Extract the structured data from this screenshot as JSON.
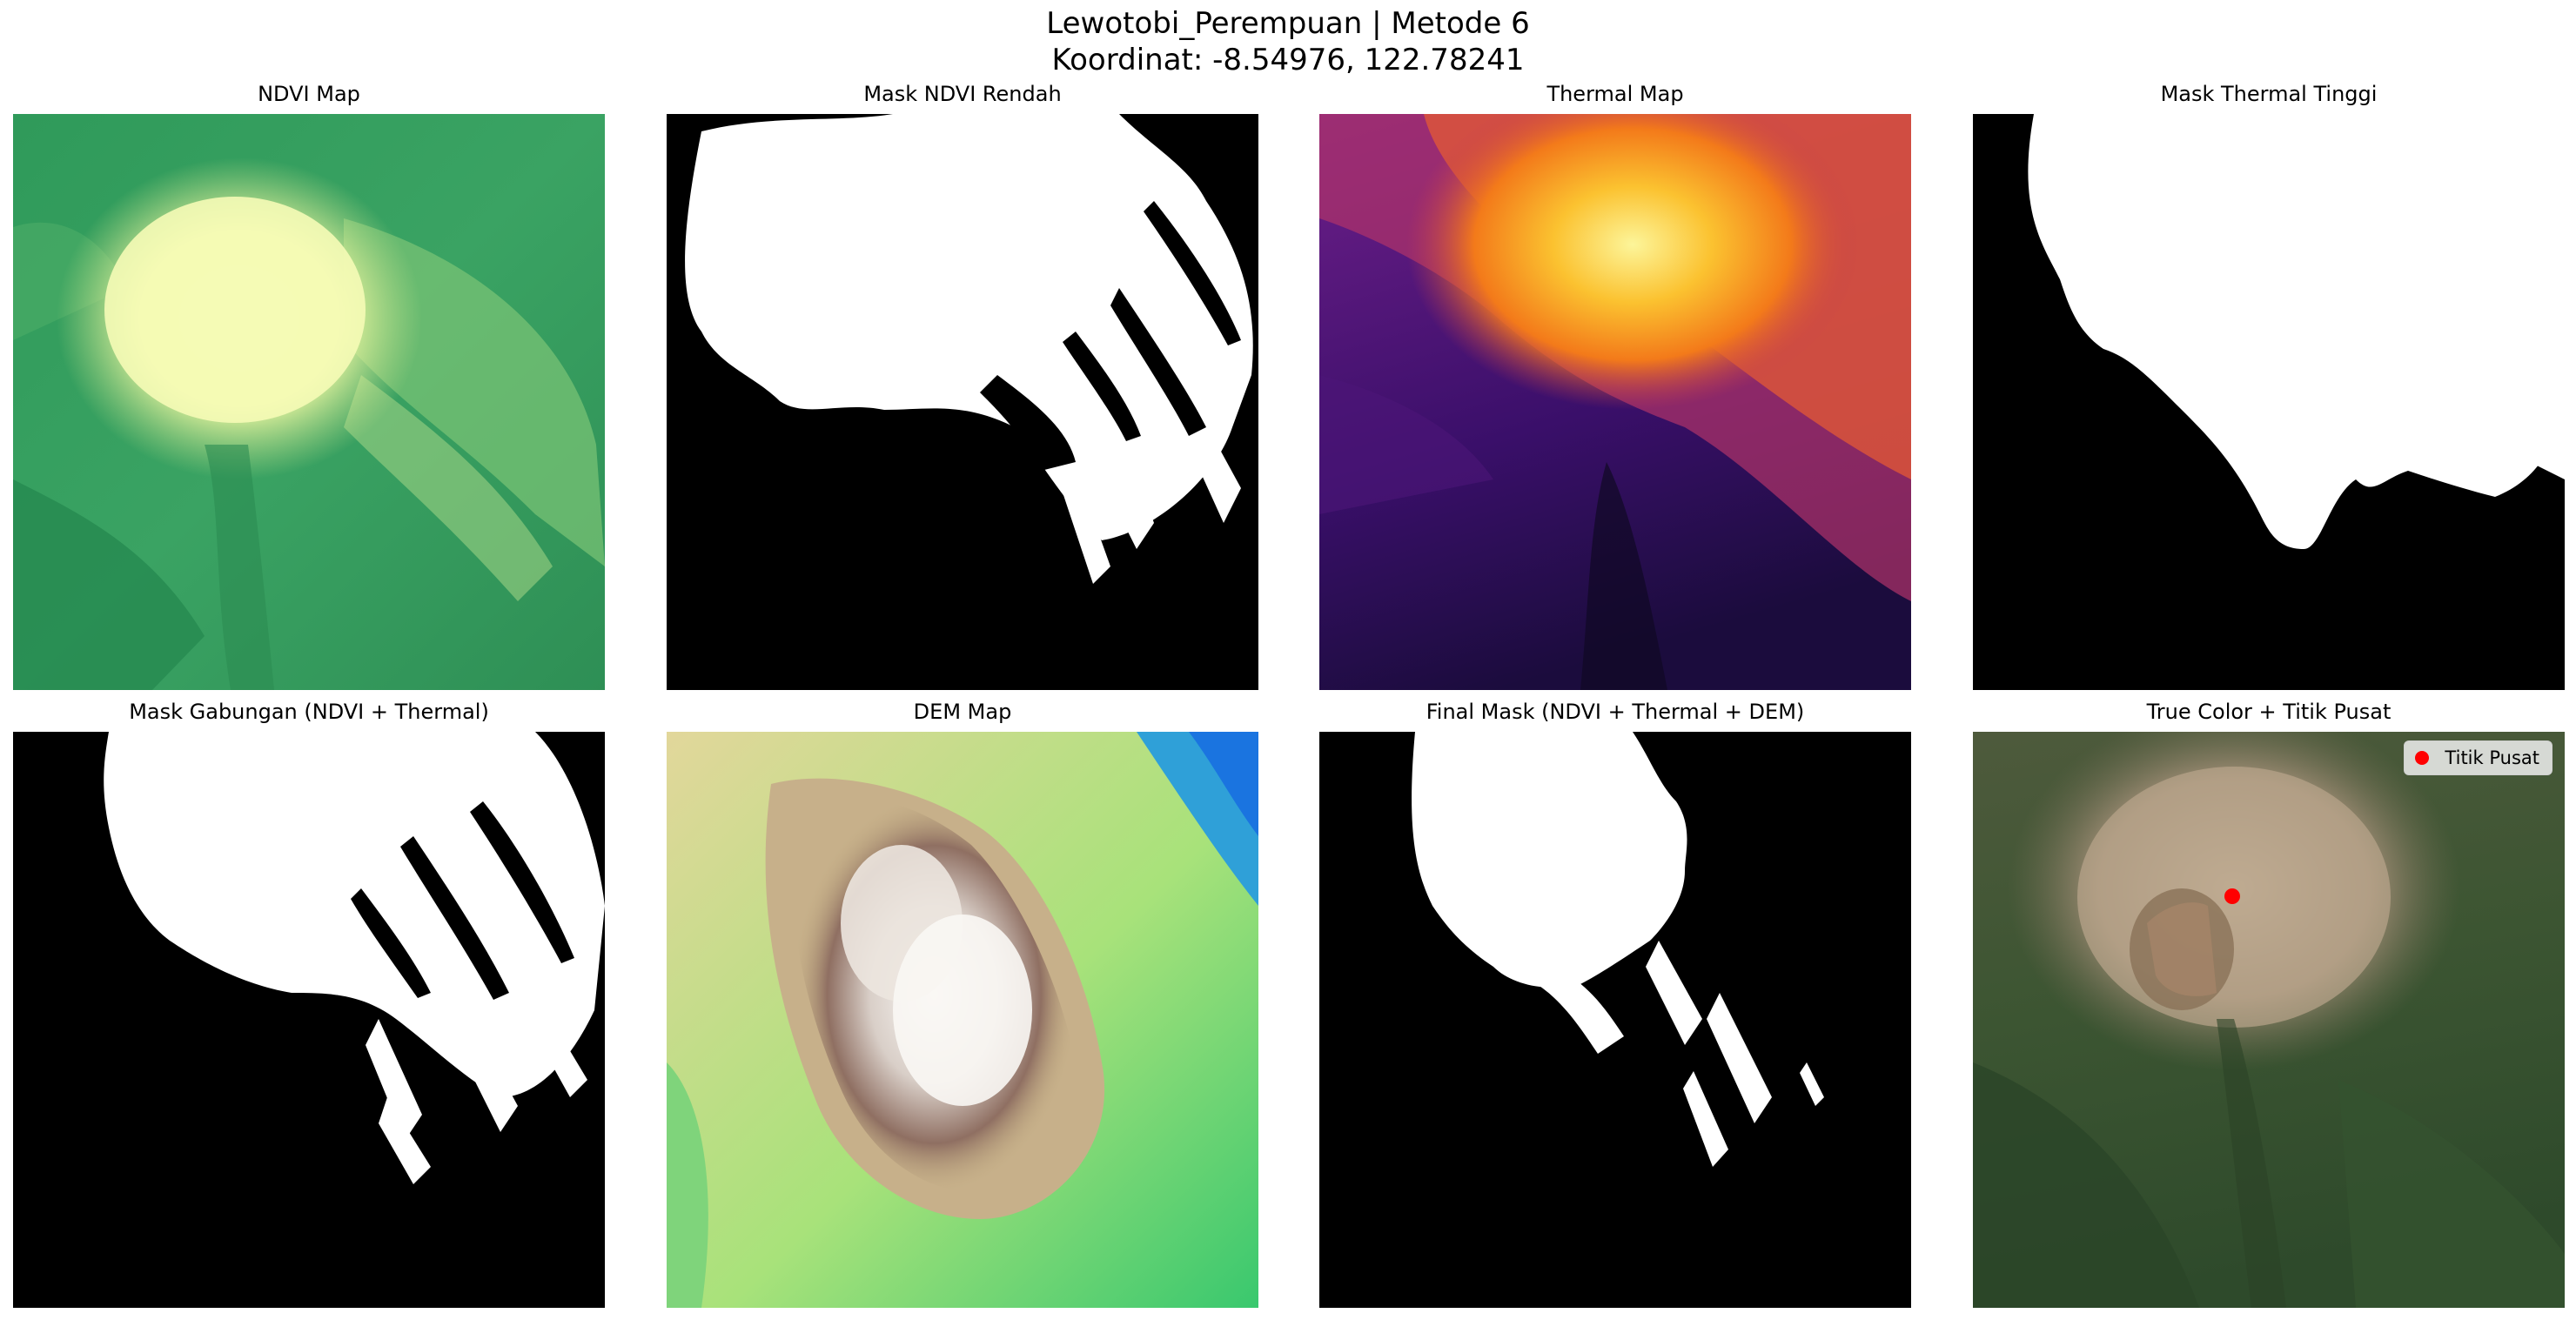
{
  "figure": {
    "title_line1": "Lewotobi_Perempuan | Metode 6",
    "title_line2": "Koordinat: -8.54976, 122.78241"
  },
  "panels": [
    {
      "title": "NDVI Map",
      "colormap": "summer"
    },
    {
      "title": "Mask NDVI Rendah",
      "colormap": "binary"
    },
    {
      "title": "Thermal Map",
      "colormap": "inferno"
    },
    {
      "title": "Mask Thermal Tinggi",
      "colormap": "binary"
    },
    {
      "title": "Mask Gabungan (NDVI + Thermal)",
      "colormap": "binary"
    },
    {
      "title": "DEM Map",
      "colormap": "terrain"
    },
    {
      "title": "Final Mask (NDVI + Thermal + DEM)",
      "colormap": "binary"
    },
    {
      "title": "True Color + Titik Pusat",
      "colormap": "rgb"
    }
  ],
  "marker": {
    "label": "Titik Pusat",
    "color": "#ff0000",
    "icon": "red-dot-marker"
  }
}
